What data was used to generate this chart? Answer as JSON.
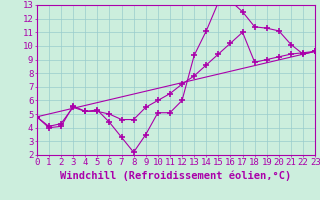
{
  "xlabel": "Windchill (Refroidissement éolien,°C)",
  "bg_color": "#cceedd",
  "line_color": "#aa00aa",
  "grid_color": "#99cccc",
  "xmin": 0,
  "xmax": 23,
  "ymin": 2,
  "ymax": 13,
  "line1_x": [
    0,
    1,
    2,
    3,
    4,
    5,
    6,
    7,
    8,
    9,
    10,
    11,
    12,
    13,
    14,
    15,
    16,
    17,
    18,
    19,
    20,
    21,
    22,
    23
  ],
  "line1_y": [
    4.8,
    4.0,
    4.1,
    5.6,
    5.2,
    5.3,
    4.4,
    3.3,
    2.2,
    3.5,
    5.1,
    5.1,
    6.0,
    9.3,
    11.1,
    13.2,
    13.3,
    12.5,
    11.4,
    11.3,
    11.1,
    10.1,
    9.4,
    9.6
  ],
  "line2_x": [
    0,
    1,
    2,
    3,
    4,
    5,
    6,
    7,
    8,
    9,
    10,
    11,
    12,
    13,
    14,
    15,
    16,
    17,
    18,
    19,
    20,
    21,
    22,
    23
  ],
  "line2_y": [
    4.8,
    4.1,
    4.3,
    5.5,
    5.2,
    5.2,
    5.0,
    4.6,
    4.6,
    5.5,
    6.0,
    6.5,
    7.2,
    7.8,
    8.6,
    9.4,
    10.2,
    11.0,
    8.8,
    9.0,
    9.2,
    9.4,
    9.5,
    9.6
  ],
  "line3_x": [
    0,
    23
  ],
  "line3_y": [
    4.8,
    9.6
  ],
  "tick_fontsize": 6.5,
  "xlabel_fontsize": 7.5
}
